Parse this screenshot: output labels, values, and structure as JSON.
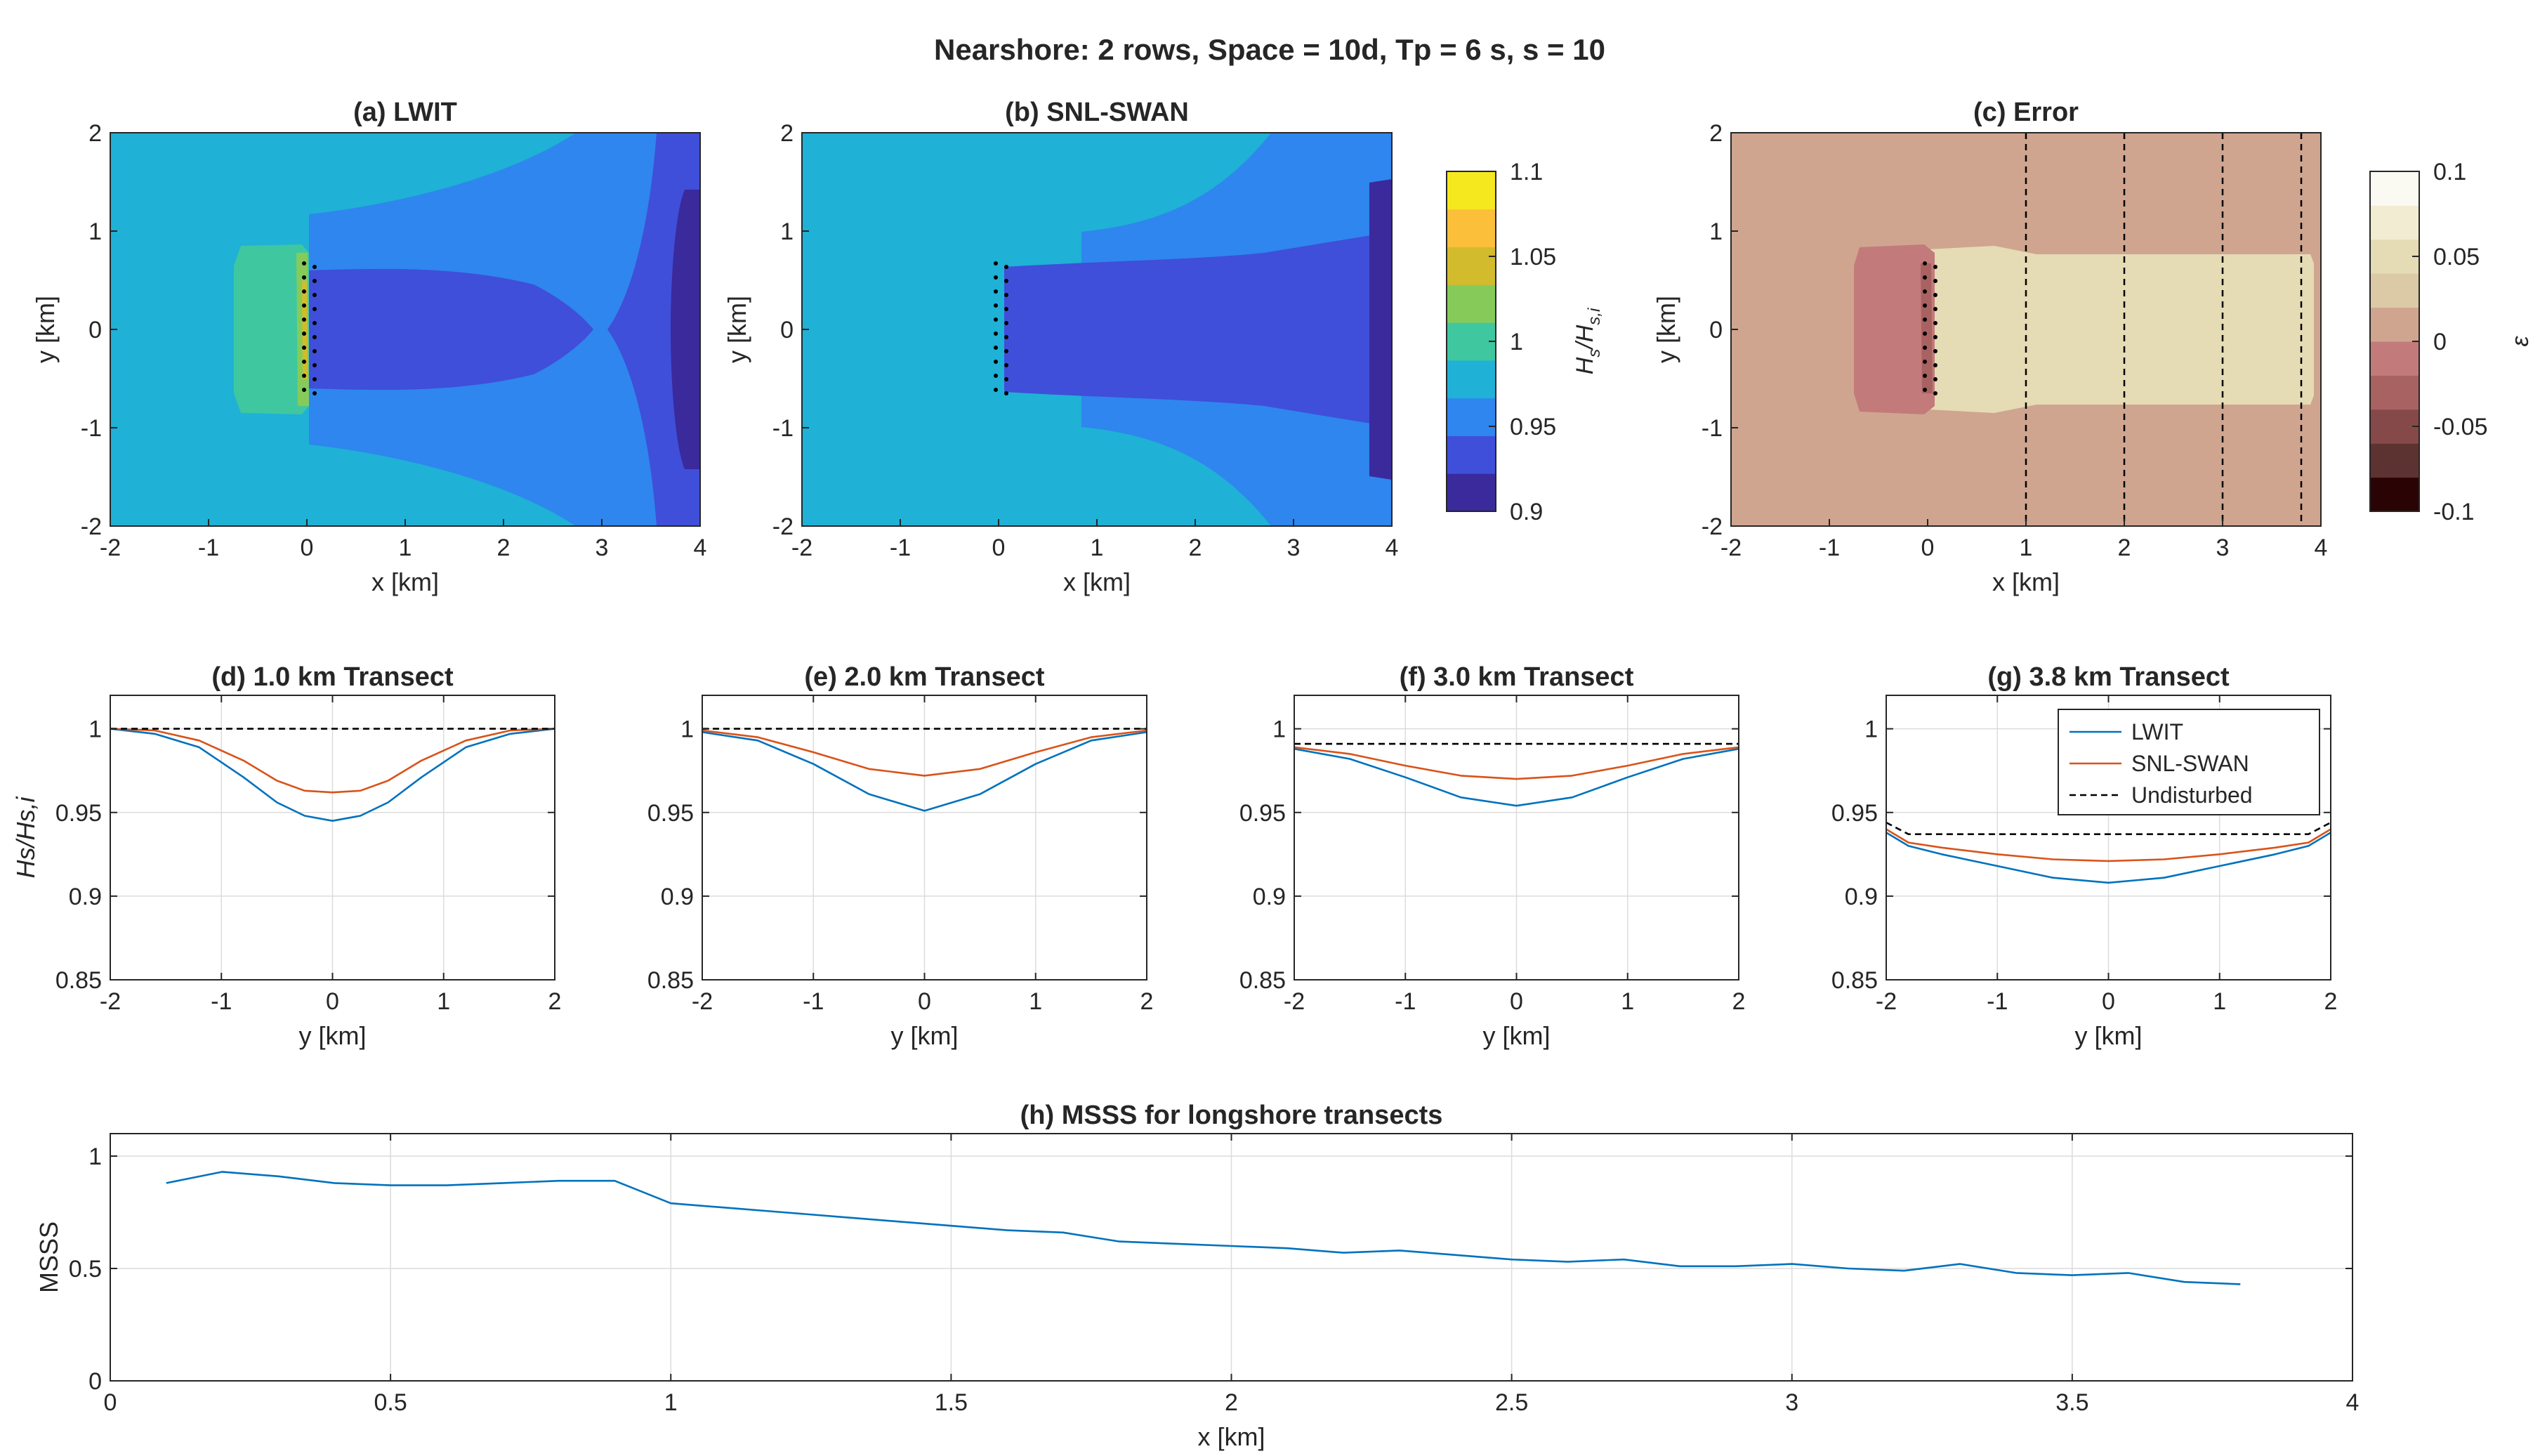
{
  "figure": {
    "suptitle": "Nearshore: 2 rows, Space = 10d, Tp = 6 s, s = 10"
  },
  "maps": [
    {
      "id": "a",
      "title": "(a) LWIT",
      "xlabel": "x [km]",
      "ylabel": "y [km]",
      "xlim": [
        -2,
        4
      ],
      "ylim": [
        -2,
        2
      ],
      "xticks": [
        "-2",
        "-1",
        "0",
        "1",
        "2",
        "3",
        "4"
      ],
      "yticks": [
        "-2",
        "-1",
        "0",
        "1",
        "2"
      ],
      "transect_lines": []
    },
    {
      "id": "b",
      "title": "(b) SNL-SWAN",
      "xlabel": "x [km]",
      "ylabel": "y [km]",
      "xlim": [
        -2,
        4
      ],
      "ylim": [
        -2,
        2
      ],
      "xticks": [
        "-2",
        "-1",
        "0",
        "1",
        "2",
        "3",
        "4"
      ],
      "yticks": [
        "-2",
        "-1",
        "0",
        "1",
        "2"
      ],
      "transect_lines": []
    },
    {
      "id": "c",
      "title": "(c) Error",
      "xlabel": "x [km]",
      "ylabel": "y [km]",
      "xlim": [
        -2,
        4
      ],
      "ylim": [
        -2,
        2
      ],
      "xticks": [
        "-2",
        "-1",
        "0",
        "1",
        "2",
        "3",
        "4"
      ],
      "yticks": [
        "-2",
        "-1",
        "0",
        "1",
        "2"
      ],
      "transect_lines": [
        1.0,
        2.0,
        3.0,
        3.8
      ]
    }
  ],
  "colorbars": [
    {
      "id": "hs",
      "label_main": "H",
      "label_sub1": "s",
      "label_mid": "/H",
      "label_sub2": "s,i",
      "range": [
        0.9,
        1.1
      ],
      "ticks": [
        "0.9",
        "0.95",
        "1",
        "1.05",
        "1.1"
      ],
      "colors": [
        "#3a2a9c",
        "#3f4fd9",
        "#2f86ee",
        "#1fb1d6",
        "#3fc7a0",
        "#86cb5a",
        "#d2bb2c",
        "#fcbf3a",
        "#f5e81f"
      ]
    },
    {
      "id": "err",
      "label": "ε",
      "range": [
        -0.1,
        0.1
      ],
      "ticks": [
        "-0.1",
        "-0.05",
        "0",
        "0.05",
        "0.1"
      ],
      "colors": [
        "#2a0404",
        "#5d3331",
        "#86494a",
        "#a86262",
        "#c27b7a",
        "#cfa590",
        "#dcc9a5",
        "#e5dbb4",
        "#f1ecd2",
        "#fbfaf2"
      ]
    }
  ],
  "chart_data": [
    {
      "type": "line",
      "id": "d",
      "title": "(d) 1.0 km Transect",
      "xlabel": "y [km]",
      "ylabel": "Hs/Hs,i",
      "xlim": [
        -2,
        2
      ],
      "ylim": [
        0.85,
        1.02
      ],
      "xticks": [
        "-2",
        "-1",
        "0",
        "1",
        "2"
      ],
      "yticks": [
        "0.85",
        "0.9",
        "0.95",
        "1"
      ],
      "series": [
        {
          "name": "LWIT",
          "color": "#0072bd",
          "x": [
            -2,
            -1.6,
            -1.2,
            -0.8,
            -0.5,
            -0.25,
            0,
            0.25,
            0.5,
            0.8,
            1.2,
            1.6,
            2
          ],
          "y": [
            1.0,
            0.997,
            0.989,
            0.971,
            0.956,
            0.948,
            0.945,
            0.948,
            0.956,
            0.971,
            0.989,
            0.997,
            1.0
          ]
        },
        {
          "name": "SNL-SWAN",
          "color": "#d95319",
          "x": [
            -2,
            -1.6,
            -1.2,
            -0.8,
            -0.5,
            -0.25,
            0,
            0.25,
            0.5,
            0.8,
            1.2,
            1.6,
            2
          ],
          "y": [
            1.0,
            0.999,
            0.993,
            0.981,
            0.969,
            0.963,
            0.962,
            0.963,
            0.969,
            0.981,
            0.993,
            0.999,
            1.0
          ]
        },
        {
          "name": "Undisturbed",
          "color": "#000000",
          "dashed": true,
          "x": [
            -2,
            2
          ],
          "y": [
            1.0,
            1.0
          ]
        }
      ]
    },
    {
      "type": "line",
      "id": "e",
      "title": "(e) 2.0 km Transect",
      "xlabel": "y [km]",
      "ylabel": "",
      "xlim": [
        -2,
        2
      ],
      "ylim": [
        0.85,
        1.02
      ],
      "xticks": [
        "-2",
        "-1",
        "0",
        "1",
        "2"
      ],
      "yticks": [
        "0.85",
        "0.9",
        "0.95",
        "1"
      ],
      "series": [
        {
          "name": "LWIT",
          "color": "#0072bd",
          "x": [
            -2,
            -1.5,
            -1,
            -0.5,
            0,
            0.5,
            1,
            1.5,
            2
          ],
          "y": [
            0.998,
            0.993,
            0.979,
            0.961,
            0.951,
            0.961,
            0.979,
            0.993,
            0.998
          ]
        },
        {
          "name": "SNL-SWAN",
          "color": "#d95319",
          "x": [
            -2,
            -1.5,
            -1,
            -0.5,
            0,
            0.5,
            1,
            1.5,
            2
          ],
          "y": [
            0.999,
            0.995,
            0.986,
            0.976,
            0.972,
            0.976,
            0.986,
            0.995,
            0.999
          ]
        },
        {
          "name": "Undisturbed",
          "color": "#000000",
          "dashed": true,
          "x": [
            -2,
            2
          ],
          "y": [
            1.0,
            1.0
          ]
        }
      ]
    },
    {
      "type": "line",
      "id": "f",
      "title": "(f) 3.0 km Transect",
      "xlabel": "y [km]",
      "ylabel": "",
      "xlim": [
        -2,
        2
      ],
      "ylim": [
        0.85,
        1.02
      ],
      "xticks": [
        "-2",
        "-1",
        "0",
        "1",
        "2"
      ],
      "yticks": [
        "0.85",
        "0.9",
        "0.95",
        "1"
      ],
      "series": [
        {
          "name": "LWIT",
          "color": "#0072bd",
          "x": [
            -2,
            -1.5,
            -1,
            -0.5,
            0,
            0.5,
            1,
            1.5,
            2
          ],
          "y": [
            0.988,
            0.982,
            0.971,
            0.959,
            0.954,
            0.959,
            0.971,
            0.982,
            0.988
          ]
        },
        {
          "name": "SNL-SWAN",
          "color": "#d95319",
          "x": [
            -2,
            -1.5,
            -1,
            -0.5,
            0,
            0.5,
            1,
            1.5,
            2
          ],
          "y": [
            0.989,
            0.985,
            0.978,
            0.972,
            0.97,
            0.972,
            0.978,
            0.985,
            0.989
          ]
        },
        {
          "name": "Undisturbed",
          "color": "#000000",
          "dashed": true,
          "x": [
            -2,
            2
          ],
          "y": [
            0.991,
            0.991
          ]
        }
      ]
    },
    {
      "type": "line",
      "id": "g",
      "title": "(g) 3.8 km Transect",
      "xlabel": "y [km]",
      "ylabel": "",
      "xlim": [
        -2,
        2
      ],
      "ylim": [
        0.85,
        1.02
      ],
      "xticks": [
        "-2",
        "-1",
        "0",
        "1",
        "2"
      ],
      "yticks": [
        "0.85",
        "0.9",
        "0.95",
        "1"
      ],
      "legend": {
        "location": "top-right",
        "entries": [
          "LWIT",
          "SNL-SWAN",
          "Undisturbed"
        ]
      },
      "series": [
        {
          "name": "LWIT",
          "color": "#0072bd",
          "x": [
            -2,
            -1.8,
            -1.5,
            -1,
            -0.5,
            0,
            0.5,
            1,
            1.5,
            1.8,
            2
          ],
          "y": [
            0.938,
            0.93,
            0.925,
            0.918,
            0.911,
            0.908,
            0.911,
            0.918,
            0.925,
            0.93,
            0.938
          ]
        },
        {
          "name": "SNL-SWAN",
          "color": "#d95319",
          "x": [
            -2,
            -1.8,
            -1.5,
            -1,
            -0.5,
            0,
            0.5,
            1,
            1.5,
            1.8,
            2
          ],
          "y": [
            0.94,
            0.932,
            0.929,
            0.925,
            0.922,
            0.921,
            0.922,
            0.925,
            0.929,
            0.932,
            0.94
          ]
        },
        {
          "name": "Undisturbed",
          "color": "#000000",
          "dashed": true,
          "x": [
            -2,
            -1.8,
            1.8,
            2
          ],
          "y": [
            0.944,
            0.937,
            0.937,
            0.944
          ]
        }
      ]
    },
    {
      "type": "line",
      "id": "h",
      "title": "(h) MSSS for longshore transects",
      "xlabel": "x [km]",
      "ylabel": "MSSS",
      "xlim": [
        0,
        4
      ],
      "ylim": [
        0,
        1.1
      ],
      "xticks": [
        "0",
        "0.5",
        "1",
        "1.5",
        "2",
        "2.5",
        "3",
        "3.5",
        "4"
      ],
      "yticks": [
        "0",
        "0.5",
        "1"
      ],
      "series": [
        {
          "name": "MSSS",
          "color": "#0072bd",
          "x": [
            0.1,
            0.2,
            0.3,
            0.4,
            0.5,
            0.6,
            0.7,
            0.8,
            0.9,
            1.0,
            1.1,
            1.2,
            1.3,
            1.4,
            1.5,
            1.6,
            1.7,
            1.8,
            1.9,
            2.0,
            2.1,
            2.2,
            2.3,
            2.4,
            2.5,
            2.6,
            2.7,
            2.8,
            2.9,
            3.0,
            3.1,
            3.2,
            3.3,
            3.4,
            3.5,
            3.6,
            3.7,
            3.8
          ],
          "y": [
            0.88,
            0.93,
            0.91,
            0.88,
            0.87,
            0.87,
            0.88,
            0.89,
            0.89,
            0.79,
            0.77,
            0.75,
            0.73,
            0.71,
            0.69,
            0.67,
            0.66,
            0.62,
            0.61,
            0.6,
            0.59,
            0.57,
            0.58,
            0.56,
            0.54,
            0.53,
            0.54,
            0.51,
            0.51,
            0.52,
            0.5,
            0.49,
            0.52,
            0.48,
            0.47,
            0.48,
            0.44,
            0.43
          ]
        }
      ]
    }
  ]
}
